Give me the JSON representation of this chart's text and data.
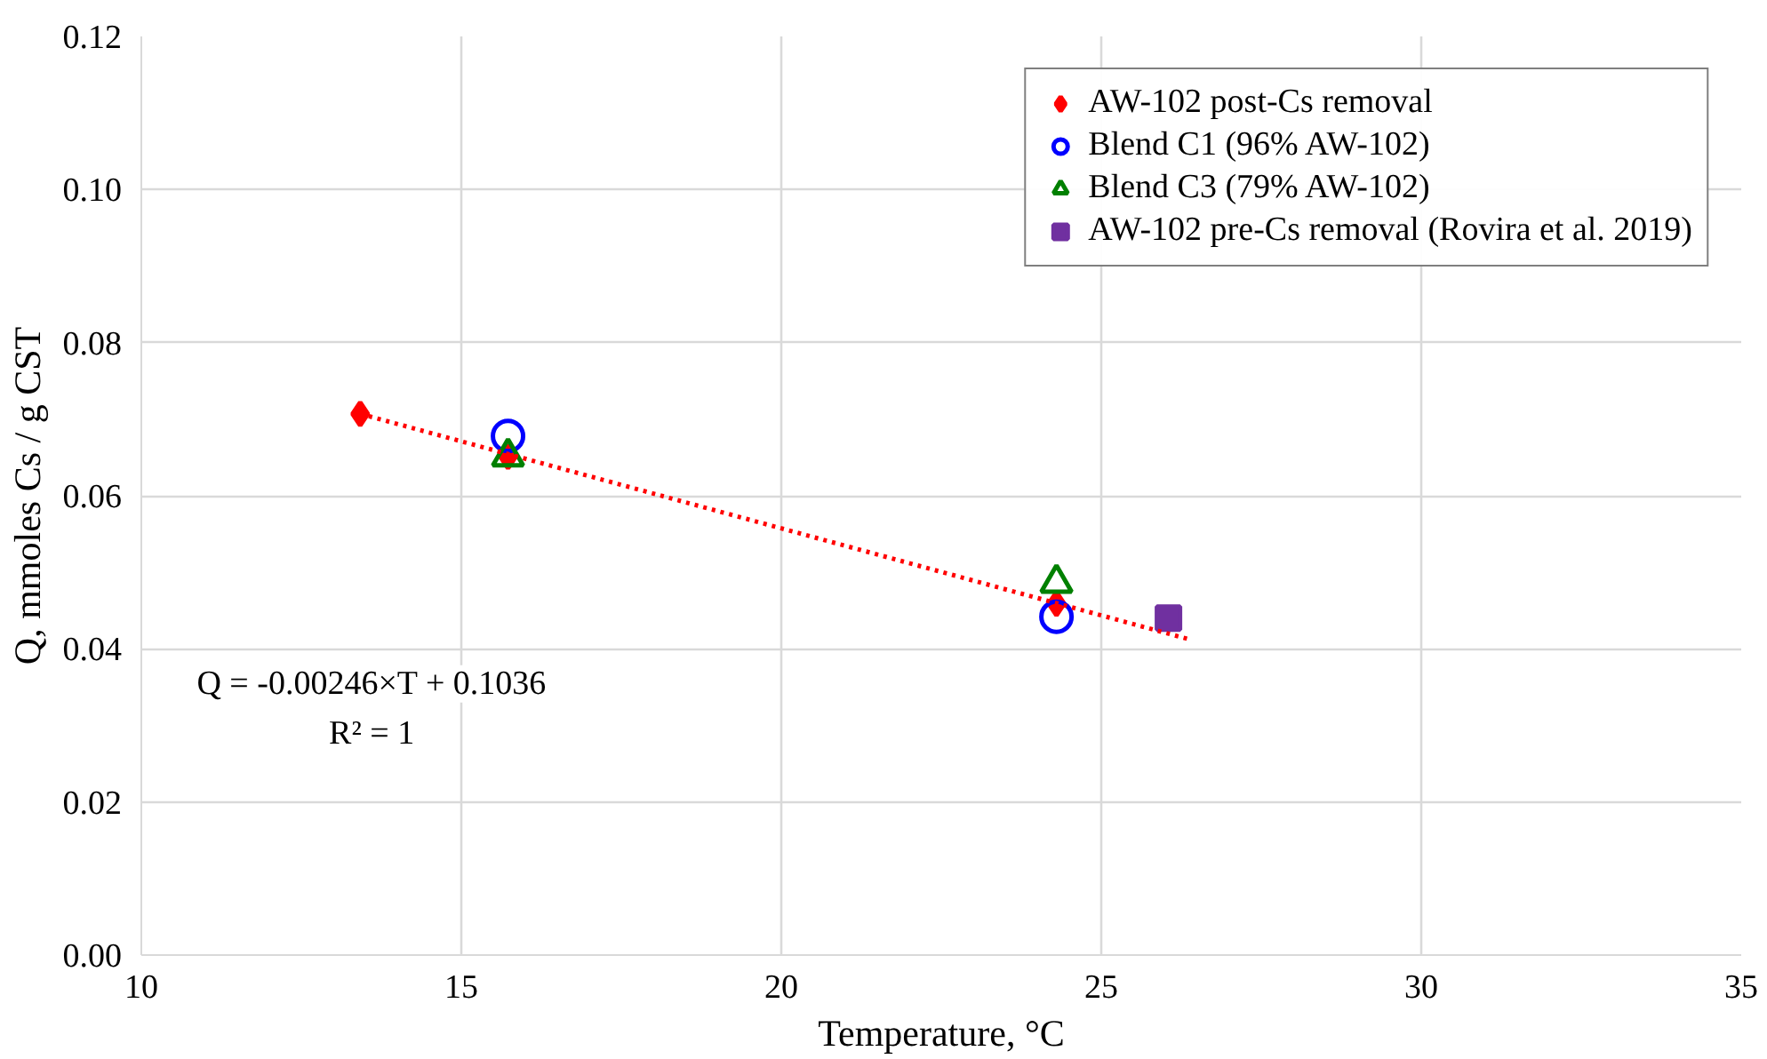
{
  "chart_data": {
    "type": "scatter",
    "xlabel": "Temperature, °C",
    "ylabel": "Q, mmoles Cs / g CST",
    "xlim": [
      10,
      35
    ],
    "xticks": [
      10,
      15,
      20,
      25,
      30,
      35
    ],
    "ylim": [
      0,
      0.12
    ],
    "yticks": [
      {
        "value": 0,
        "label": "0.00"
      },
      {
        "value": 0.02,
        "label": "0.02"
      },
      {
        "value": 0.04,
        "label": "0.04"
      },
      {
        "value": 0.06,
        "label": "0.06"
      },
      {
        "value": 0.08,
        "label": "0.08"
      },
      {
        "value": 0.1,
        "label": "0.10"
      },
      {
        "value": 0.12,
        "label": "0.12"
      }
    ],
    "grid": true,
    "legend": "top right",
    "series": [
      {
        "name": "AW-102 post-Cs removal",
        "color": "#ff0000",
        "marker": "diamond",
        "x": [
          13.42,
          15.73,
          24.3
        ],
        "values": [
          0.0707,
          0.0651,
          0.0459
        ]
      },
      {
        "name": "Blend C1 (96% AW-102)",
        "color": "#0000ff",
        "marker": "circle",
        "x": [
          15.73,
          24.3
        ],
        "values": [
          0.0678,
          0.0442
        ]
      },
      {
        "name": "Blend C3 (79% AW-102)",
        "color": "#008000",
        "marker": "triangle",
        "x": [
          15.73,
          24.3
        ],
        "values": [
          0.0651,
          0.0486
        ]
      },
      {
        "name": "AW-102 pre-Cs removal (Rovira et al. 2019)",
        "color": "#7030a0",
        "marker": "square",
        "x": [
          26.05
        ],
        "values": [
          0.044
        ]
      },
      {
        "type": "line",
        "color": "#ff0000",
        "line_style": "dotted",
        "x": [
          13.42,
          26.35
        ],
        "values": [
          0.0707,
          0.0413
        ]
      }
    ],
    "annotations": [
      "Q = -0.00246×T + 0.1036",
      "R² = 1"
    ]
  }
}
